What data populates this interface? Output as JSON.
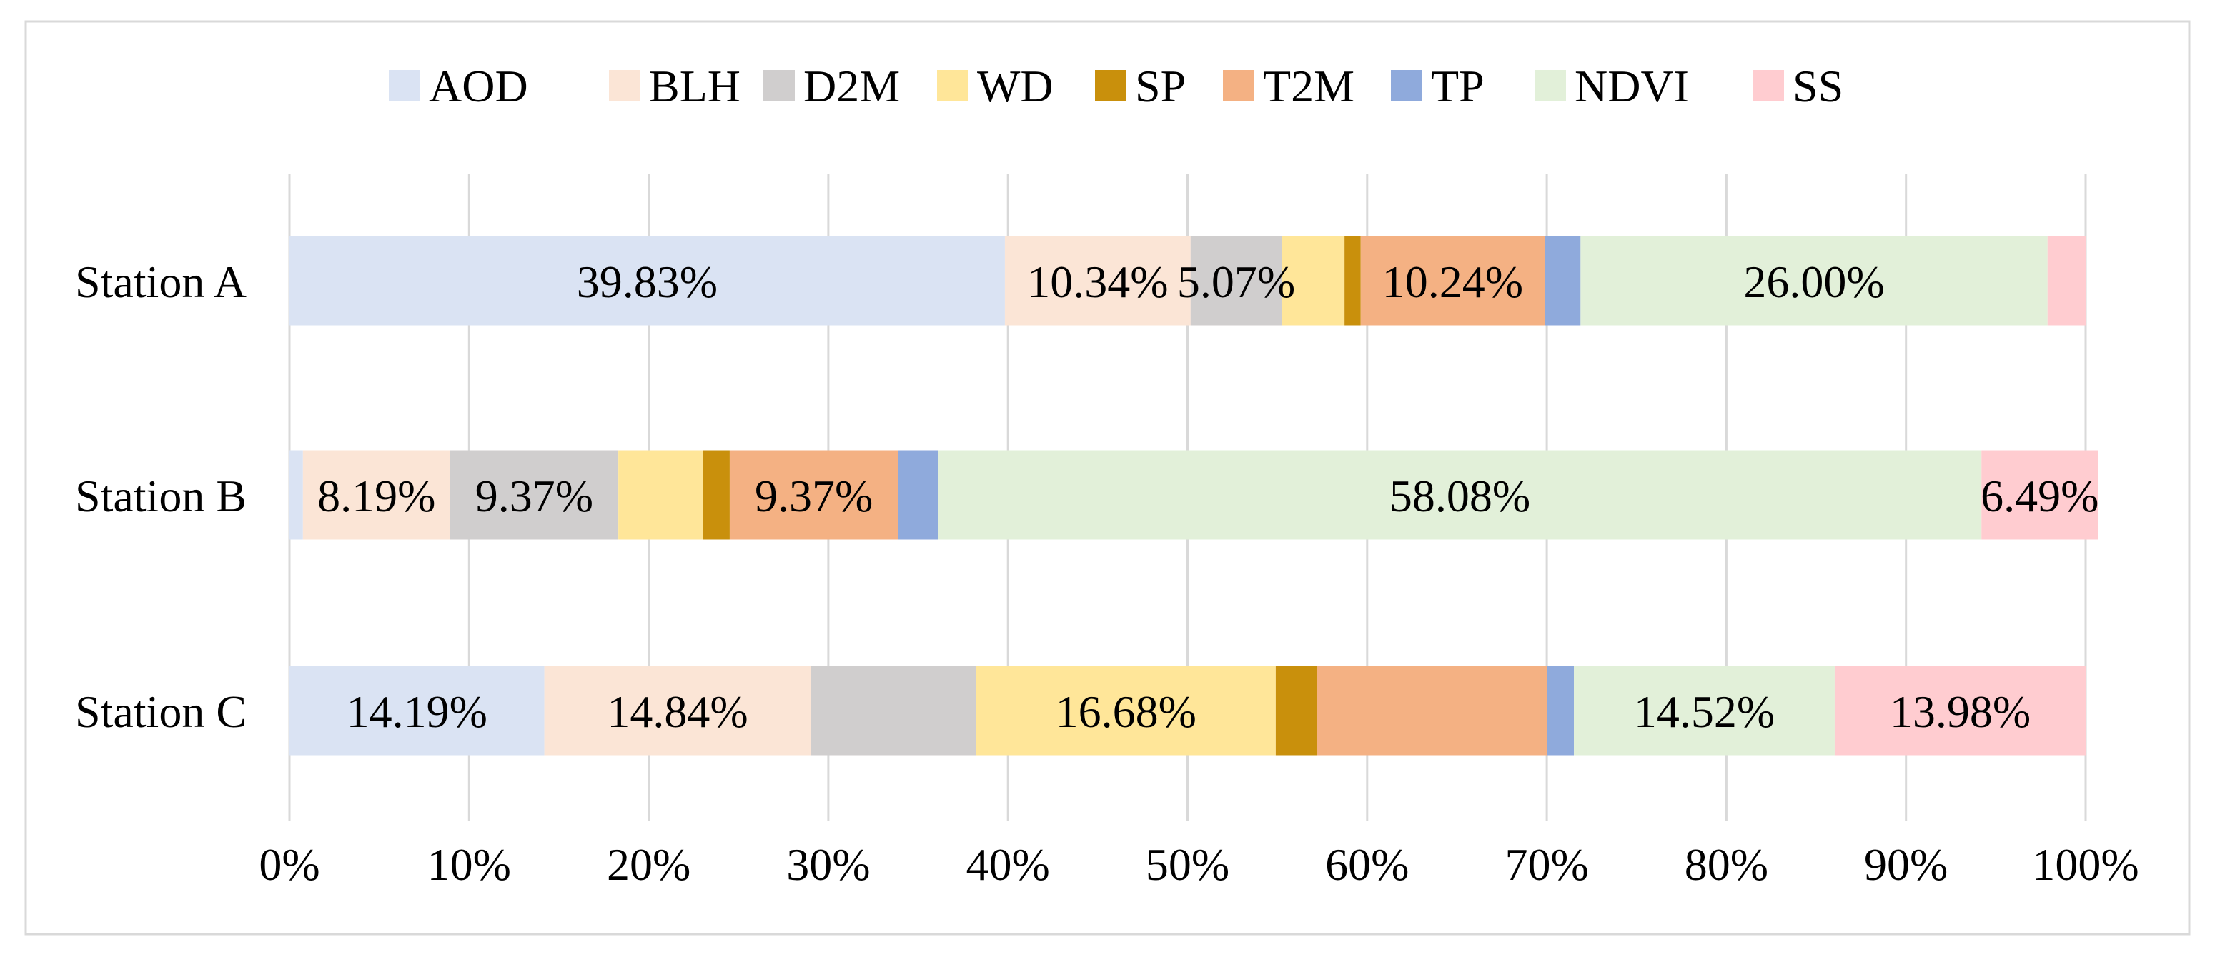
{
  "chart_data": {
    "type": "bar",
    "orientation": "horizontal",
    "stacked": true,
    "percent_stacked": true,
    "title": "",
    "xlabel": "",
    "ylabel": "",
    "xlim": [
      0,
      100
    ],
    "legend_position": "top-center",
    "grid": "vertical",
    "categories": [
      "Station A",
      "Station B",
      "Station C"
    ],
    "x_ticks": [
      "0%",
      "10%",
      "20%",
      "30%",
      "40%",
      "50%",
      "60%",
      "70%",
      "80%",
      "90%",
      "100%"
    ],
    "series": [
      {
        "name": "AOD",
        "color": "#dae3f3",
        "values": [
          39.83,
          0.75,
          14.19
        ],
        "labels": [
          "39.83%",
          "",
          "14.19%"
        ]
      },
      {
        "name": "BLH",
        "color": "#fbe5d6",
        "values": [
          10.34,
          8.19,
          14.84
        ],
        "labels": [
          "10.34%",
          "8.19%",
          "14.84%"
        ]
      },
      {
        "name": "D2M",
        "color": "#d0cece",
        "values": [
          5.07,
          9.37,
          9.2
        ],
        "labels": [
          "5.07%",
          "9.37%",
          ""
        ]
      },
      {
        "name": "WD",
        "color": "#ffe699",
        "values": [
          3.5,
          4.7,
          16.68
        ],
        "labels": [
          "",
          "",
          "16.68%"
        ]
      },
      {
        "name": "SP",
        "color": "#c9900c",
        "values": [
          0.9,
          1.5,
          2.3
        ],
        "labels": [
          "",
          "",
          ""
        ]
      },
      {
        "name": "T2M",
        "color": "#f4b183",
        "values": [
          10.24,
          9.37,
          12.8
        ],
        "labels": [
          "10.24%",
          "9.37%",
          ""
        ]
      },
      {
        "name": "TP",
        "color": "#8faadc",
        "values": [
          2.0,
          2.24,
          1.5
        ],
        "labels": [
          "",
          "",
          ""
        ]
      },
      {
        "name": "NDVI",
        "color": "#e2f0d9",
        "values": [
          26.0,
          58.08,
          14.52
        ],
        "labels": [
          "26.00%",
          "58.08%",
          "14.52%"
        ]
      },
      {
        "name": "SS",
        "color": "#ffccd0",
        "values": [
          2.12,
          6.49,
          13.98
        ],
        "labels": [
          "",
          "6.49%",
          "13.98%"
        ]
      }
    ]
  }
}
